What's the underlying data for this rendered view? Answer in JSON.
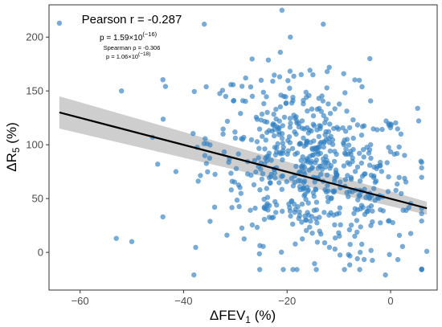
{
  "chart_data": {
    "type": "scatter",
    "title": "",
    "xlabel": {
      "main": "ΔFEV",
      "sub": "1",
      "unit": " (%)"
    },
    "ylabel": {
      "main": "ΔR",
      "sub": "5",
      "unit": " (%)"
    },
    "xlim": [
      -66,
      9
    ],
    "ylim": [
      -35,
      230
    ],
    "x_ticks": [
      -60,
      -40,
      -20,
      0
    ],
    "y_ticks": [
      0,
      50,
      100,
      150,
      200
    ],
    "grid": false,
    "colors": {
      "points": "#2f7fc1",
      "fit_line": "#000000",
      "confidence_band": "#bdbdbd"
    },
    "annotations": {
      "pearson": "Pearson r = -0.287",
      "pearson_p": {
        "base": "p = 1.59×10",
        "exp": "(−16)"
      },
      "spearman": "Spearman ρ = -0.306",
      "spearman_p": {
        "base": "p = 1.06×10",
        "exp": "(−18)"
      }
    },
    "fit_line": {
      "x": [
        -64,
        7
      ],
      "y": [
        130,
        41
      ],
      "ci_upper": [
        145,
        47
      ],
      "ci_lower": [
        115,
        35
      ]
    },
    "highlighted_points": [
      {
        "x": -64,
        "y": 213
      },
      {
        "x": -53,
        "y": 13
      },
      {
        "x": -50,
        "y": 10
      },
      {
        "x": -52,
        "y": 150
      },
      {
        "x": -36,
        "y": 212
      },
      {
        "x": -38,
        "y": -21
      },
      {
        "x": -21,
        "y": 225
      },
      {
        "x": -13,
        "y": 212
      },
      {
        "x": 7,
        "y": 1
      },
      {
        "x": -1,
        "y": -21
      },
      {
        "x": -4,
        "y": 180
      },
      {
        "x": 2,
        "y": 110
      },
      {
        "x": -46,
        "y": 107
      },
      {
        "x": -44,
        "y": 33
      },
      {
        "x": -45,
        "y": 82
      },
      {
        "x": -28,
        "y": 162
      },
      {
        "x": -25,
        "y": 160
      },
      {
        "x": -15,
        "y": 165
      }
    ],
    "cloud": {
      "n": 620,
      "x_mean": -15,
      "x_sd": 10,
      "x_range": [
        -44,
        6
      ],
      "y_mean": 78,
      "y_sd": 40,
      "slope": -1.25,
      "y_range": [
        -16,
        200
      ]
    }
  }
}
